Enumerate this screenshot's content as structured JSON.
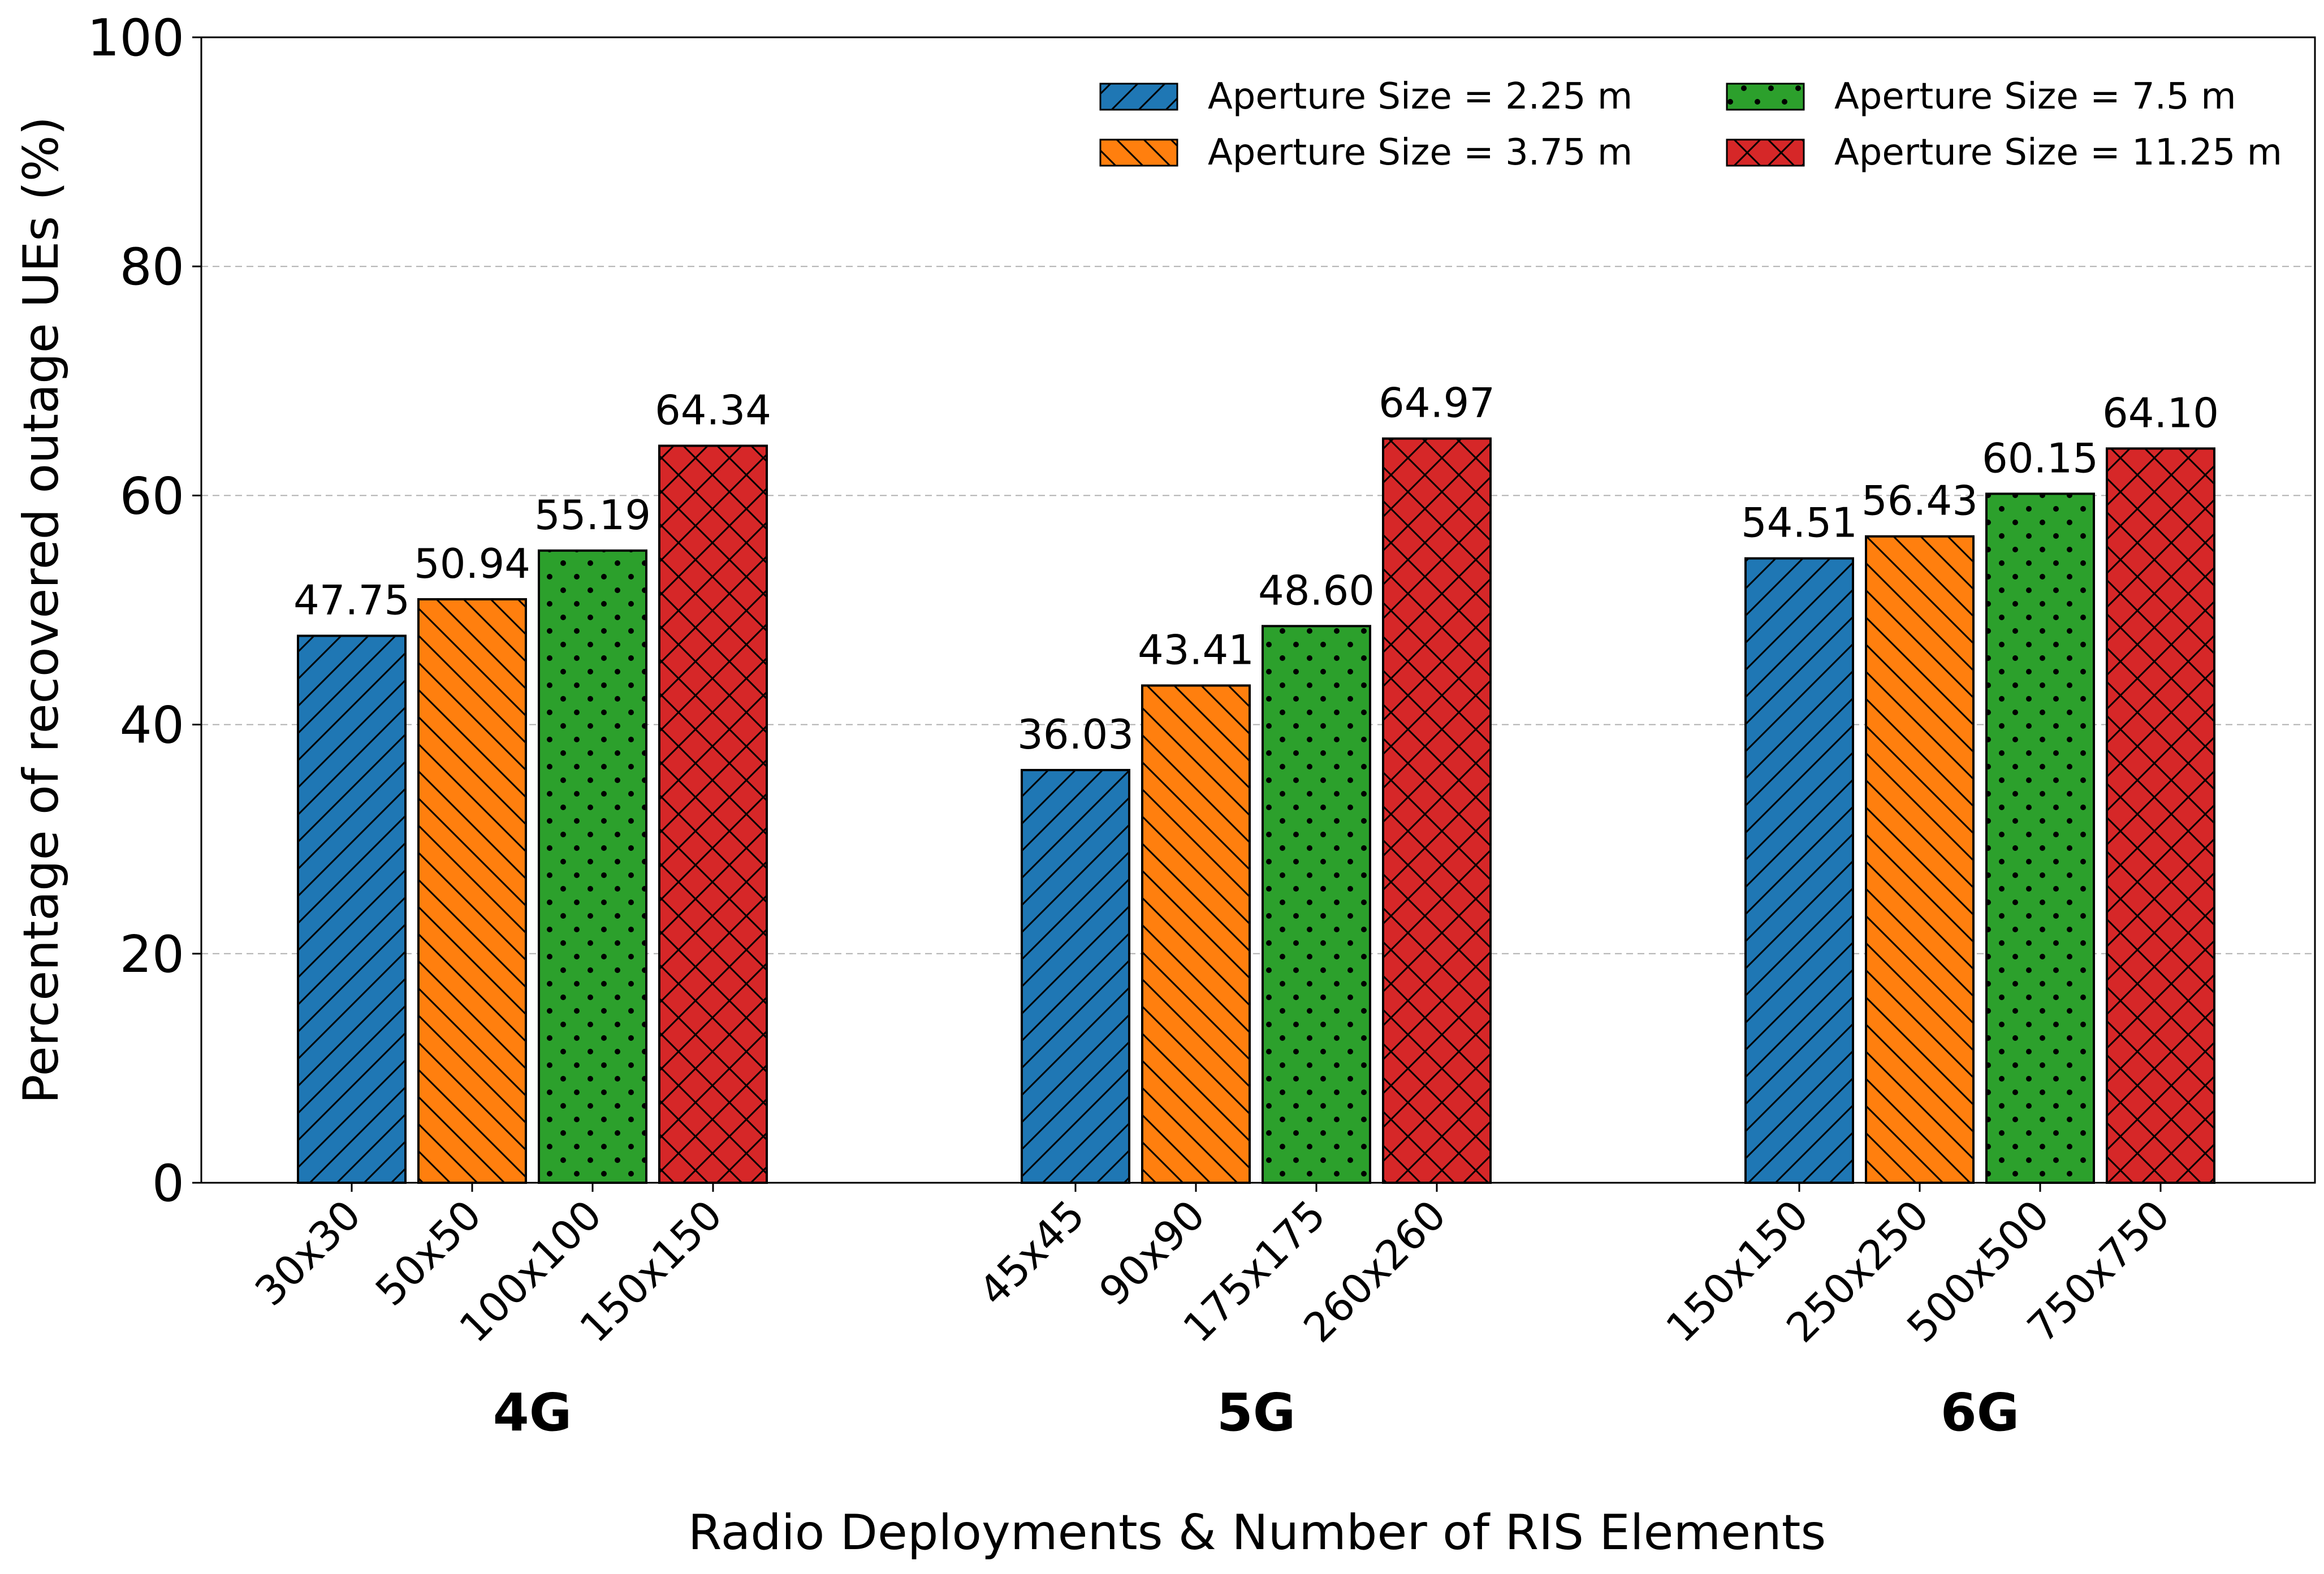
{
  "chart_data": {
    "type": "bar",
    "title": "",
    "xlabel": "Radio Deployments & Number of RIS Elements",
    "ylabel": "Percentage of recovered outage UEs (%)",
    "ylim": [
      0,
      100
    ],
    "yticks": [
      0,
      20,
      40,
      60,
      80,
      100
    ],
    "grid": "horizontal dashed",
    "legend_position": "top-right",
    "groups": [
      "4G",
      "5G",
      "6G"
    ],
    "categories": [
      [
        "30x30",
        "50x50",
        "100x100",
        "150x150"
      ],
      [
        "45x45",
        "90x90",
        "175x175",
        "260x260"
      ],
      [
        "150x150",
        "250x250",
        "500x500",
        "750x750"
      ]
    ],
    "series": [
      {
        "name": "Aperture Size = 2.25 m",
        "color": "#1f77b4",
        "hatch": "diagonal-forward",
        "values": [
          47.75,
          36.03,
          54.51
        ]
      },
      {
        "name": "Aperture Size = 3.75 m",
        "color": "#ff7f0e",
        "hatch": "diagonal-back",
        "values": [
          50.94,
          43.41,
          56.43
        ]
      },
      {
        "name": "Aperture Size = 7.5 m",
        "color": "#2ca02c",
        "hatch": "dots",
        "values": [
          55.19,
          48.6,
          60.15
        ]
      },
      {
        "name": "Aperture Size = 11.25 m",
        "color": "#d62728",
        "hatch": "cross",
        "values": [
          64.34,
          64.97,
          64.1
        ]
      }
    ],
    "value_labels": [
      [
        "47.75",
        "50.94",
        "55.19",
        "64.34"
      ],
      [
        "36.03",
        "43.41",
        "48.60",
        "64.97"
      ],
      [
        "54.51",
        "56.43",
        "60.15",
        "64.10"
      ]
    ]
  }
}
